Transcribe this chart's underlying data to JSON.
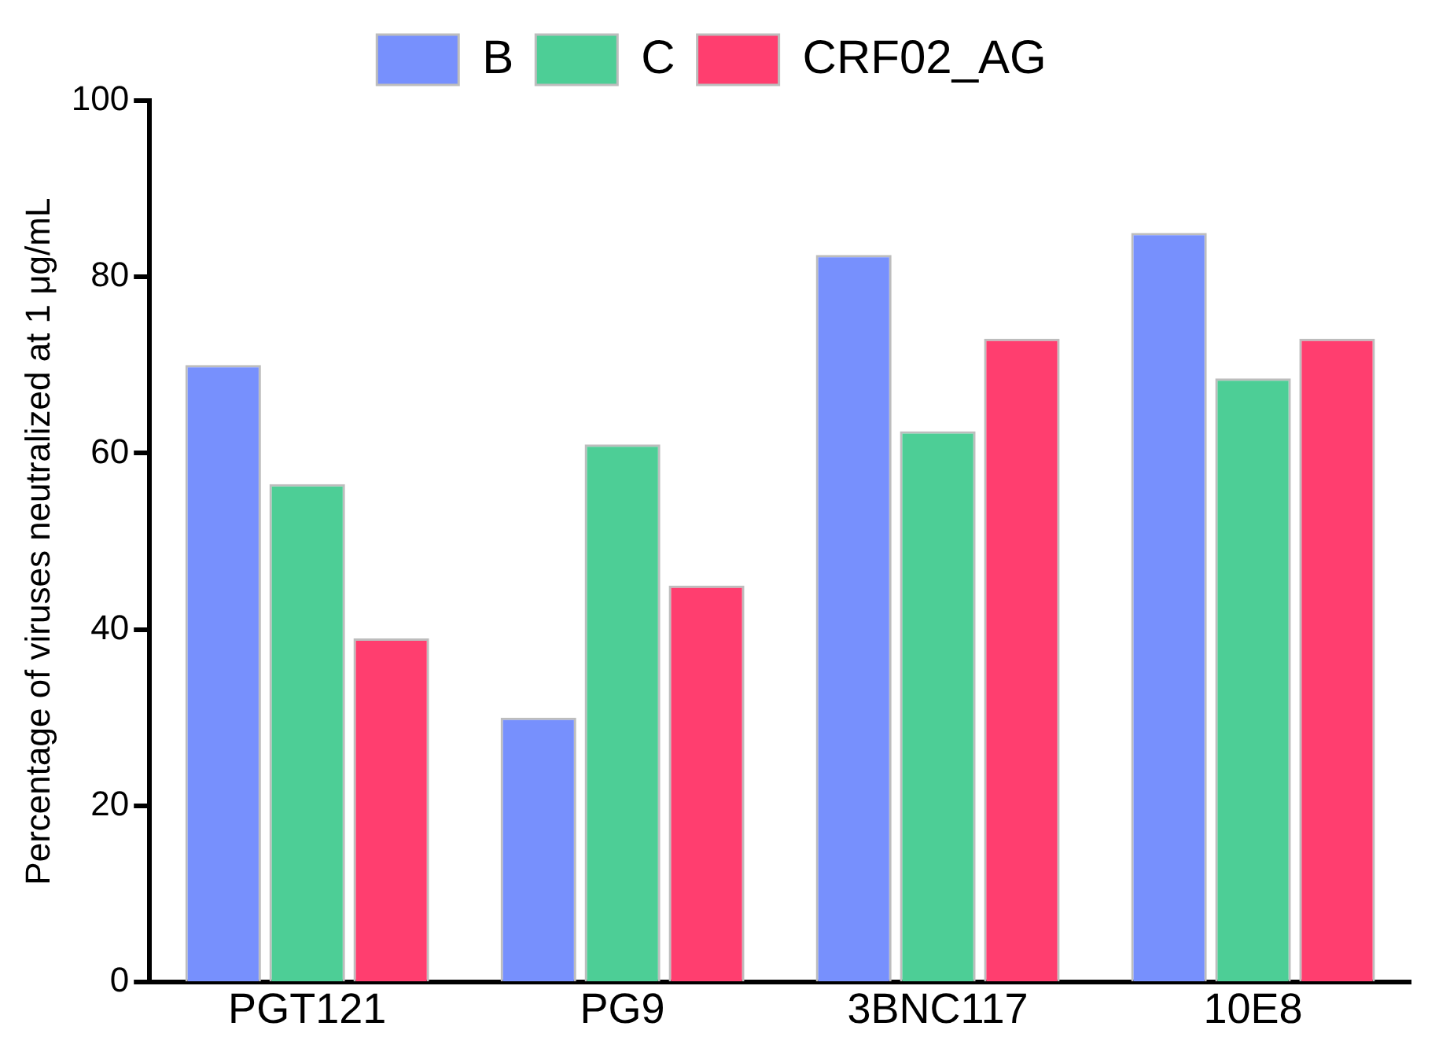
{
  "chart_data": {
    "type": "bar",
    "ylabel": "Percentage of viruses neutralized at 1 μg/mL",
    "categories": [
      "PGT121",
      "PG9",
      "3BNC117",
      "10E8"
    ],
    "series": [
      {
        "name": "B",
        "color": "#7790fd",
        "values": [
          70,
          30,
          82.5,
          85
        ]
      },
      {
        "name": "C",
        "color": "#4dce96",
        "values": [
          56.5,
          61,
          62.5,
          68.5
        ]
      },
      {
        "name": "CRF02_AG",
        "color": "#ff3e6f",
        "values": [
          39,
          45,
          73,
          73
        ]
      }
    ],
    "ylim": [
      0,
      100
    ],
    "yticks": [
      0,
      20,
      40,
      60,
      80,
      100
    ],
    "grid": false,
    "legend": "top"
  }
}
